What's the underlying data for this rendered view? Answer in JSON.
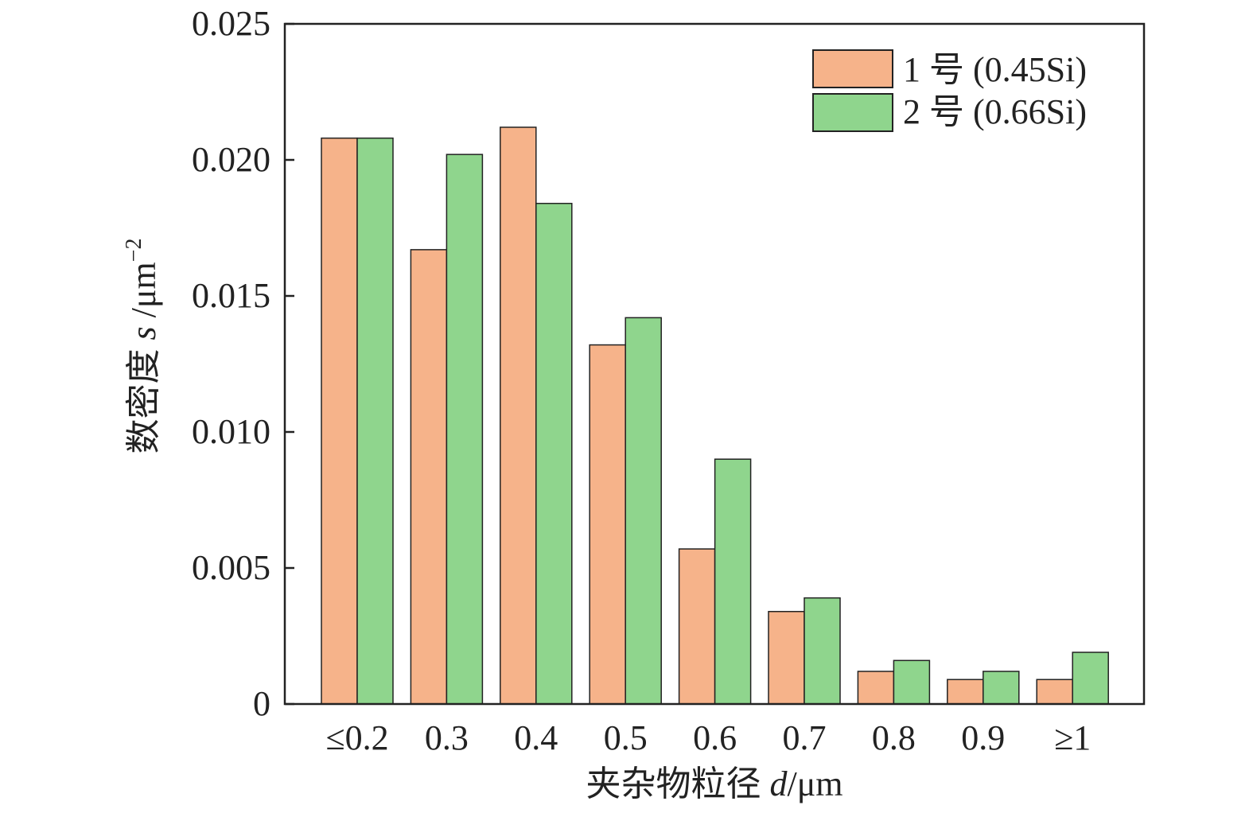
{
  "chart_data": {
    "type": "bar",
    "title": "",
    "xlabel": "夹杂物粒径 d/μm",
    "xlabel_prefix": "夹杂物粒径 ",
    "xlabel_var": "d",
    "xlabel_unit": "/μm",
    "ylabel": "数密度 s /μm⁻²",
    "ylabel_prefix": "数密度 ",
    "ylabel_var": "s",
    "ylabel_unit": " /μm",
    "ylabel_exp": "−2",
    "ylim": [
      0,
      0.025
    ],
    "yticks": [
      "0",
      "0.005",
      "0.010",
      "0.015",
      "0.020",
      "0.025"
    ],
    "ytick_values": [
      0,
      0.005,
      0.01,
      0.015,
      0.02,
      0.025
    ],
    "categories": [
      "≤0.2",
      "0.3",
      "0.4",
      "0.5",
      "0.6",
      "0.7",
      "0.8",
      "0.9",
      "≥1"
    ],
    "legend_position": "top-right",
    "grid": false,
    "series": [
      {
        "name": "1 号 (0.45Si)",
        "color": "#F6B38A",
        "values": [
          0.0208,
          0.0167,
          0.0212,
          0.0132,
          0.0057,
          0.0034,
          0.0012,
          0.0009,
          0.0009
        ]
      },
      {
        "name": "2 号 (0.66Si)",
        "color": "#8FD58D",
        "values": [
          0.0208,
          0.0202,
          0.0184,
          0.0142,
          0.009,
          0.0039,
          0.0016,
          0.0012,
          0.0019
        ]
      }
    ]
  }
}
